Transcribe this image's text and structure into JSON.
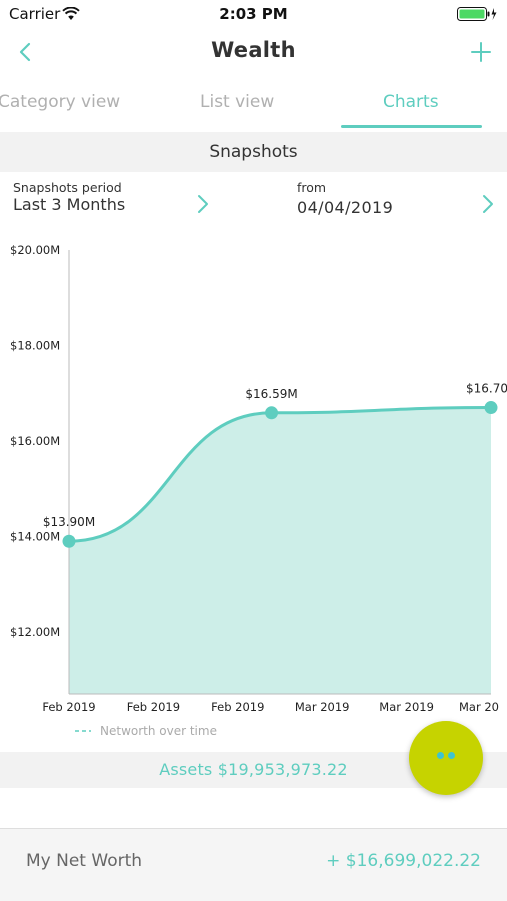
{
  "status_bar": {
    "carrier": "Carrier",
    "time": "2:03 PM"
  },
  "nav": {
    "title": "Wealth"
  },
  "tabs": [
    {
      "label": "Category view",
      "active": false
    },
    {
      "label": "List view",
      "active": false
    },
    {
      "label": "Charts",
      "active": true
    }
  ],
  "section": {
    "title": "Snapshots"
  },
  "period": {
    "label": "Snapshots period",
    "value": "Last 3 Months",
    "from_label": "from",
    "from_value": "04/04/2019"
  },
  "chart_data": {
    "type": "area",
    "title": "",
    "xlabel": "",
    "ylabel": "",
    "y_ticks": [
      "$12.00M",
      "$14.00M",
      "$16.00M",
      "$18.00M",
      "$20.00M"
    ],
    "y_tick_values": [
      12,
      14,
      16,
      18,
      20
    ],
    "x_ticks": [
      "Feb 2019",
      "Feb 2019",
      "Feb 2019",
      "Mar 2019",
      "Mar 2019",
      "Mar 20"
    ],
    "ylim": [
      10.7,
      20
    ],
    "points": [
      {
        "x": 0,
        "y": 13.9,
        "label": "$13.90M"
      },
      {
        "x": 2.4,
        "y": 16.59,
        "label": "$16.59M"
      },
      {
        "x": 5,
        "y": 16.7,
        "label": "$16.70"
      }
    ],
    "legend": {
      "label": "Networth over time",
      "position": "bottom-left"
    },
    "colors": {
      "line": "#5ecdbf",
      "fill": "#cdeee8"
    }
  },
  "assets": {
    "label": "Assets $19,953,973.22"
  },
  "networth": {
    "label": "My Net Worth",
    "value": "+ $16,699,022.22"
  },
  "colors": {
    "accent": "#5ecdbf",
    "fab": "#c6d300"
  }
}
